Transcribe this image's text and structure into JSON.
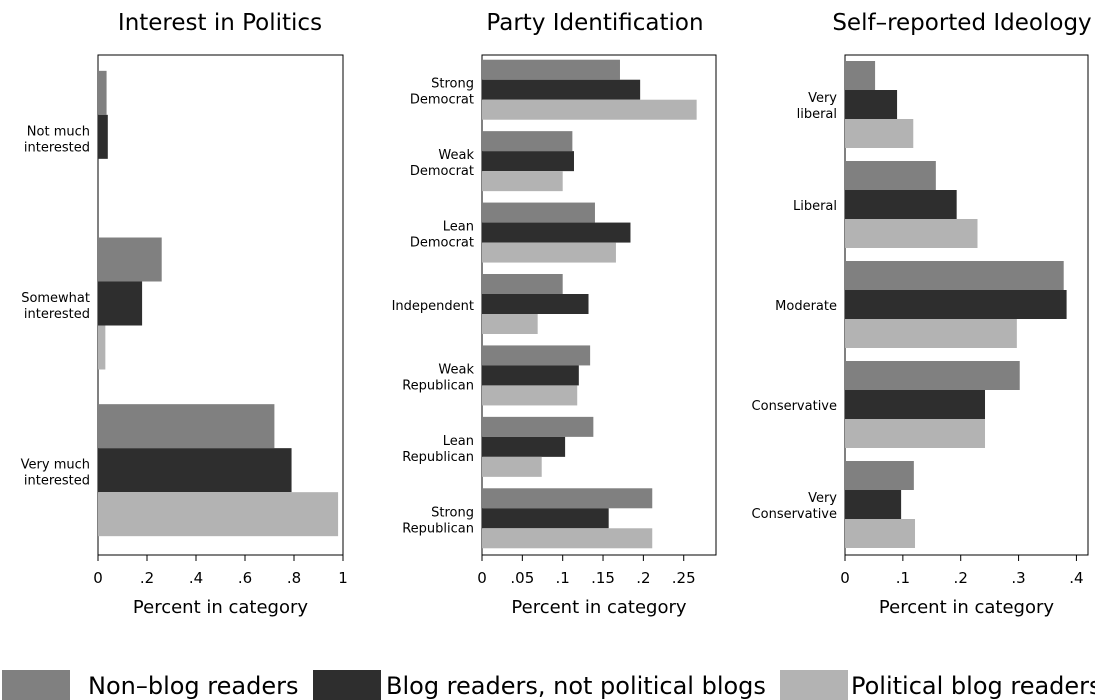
{
  "legend": [
    {
      "label": "Non–blog readers",
      "color": "#808080"
    },
    {
      "label": "Blog readers, not political blogs",
      "color": "#2e2e2e"
    },
    {
      "label": "Political blog readers",
      "color": "#b3b3b3"
    }
  ],
  "chart_data": [
    {
      "type": "bar",
      "orientation": "horizontal",
      "title": "Interest in Politics",
      "xlabel": "Percent in category",
      "xlim": [
        0,
        1
      ],
      "xticks": [
        "0",
        ".2",
        ".4",
        ".6",
        ".8",
        "1"
      ],
      "tick_values": [
        0,
        0.2,
        0.4,
        0.6,
        0.8,
        1
      ],
      "categories": [
        [
          "Not much",
          "interested"
        ],
        [
          "Somewhat",
          "interested"
        ],
        [
          "Very much",
          "interested"
        ]
      ],
      "series": [
        {
          "name": "Non–blog readers",
          "values": [
            0.035,
            0.26,
            0.72
          ]
        },
        {
          "name": "Blog readers, not political blogs",
          "values": [
            0.04,
            0.18,
            0.79
          ]
        },
        {
          "name": "Political blog readers",
          "values": [
            0.0,
            0.03,
            0.98
          ]
        }
      ]
    },
    {
      "type": "bar",
      "orientation": "horizontal",
      "title": "Party Identification",
      "xlabel": "Percent in category",
      "xlim": [
        0,
        0.29
      ],
      "xticks": [
        "0",
        ".05",
        ".1",
        ".15",
        ".2",
        ".25"
      ],
      "tick_values": [
        0,
        0.05,
        0.1,
        0.15,
        0.2,
        0.25
      ],
      "categories": [
        [
          "Strong",
          "Democrat"
        ],
        [
          "Weak",
          "Democrat"
        ],
        [
          "Lean",
          "Democrat"
        ],
        [
          "Independent"
        ],
        [
          "Weak",
          "Republican"
        ],
        [
          "Lean",
          "Republican"
        ],
        [
          "Strong",
          "Republican"
        ]
      ],
      "series": [
        {
          "name": "Non–blog readers",
          "values": [
            0.171,
            0.112,
            0.14,
            0.1,
            0.134,
            0.138,
            0.211
          ]
        },
        {
          "name": "Blog readers, not political blogs",
          "values": [
            0.196,
            0.114,
            0.184,
            0.132,
            0.12,
            0.103,
            0.157
          ]
        },
        {
          "name": "Political blog readers",
          "values": [
            0.266,
            0.1,
            0.166,
            0.069,
            0.118,
            0.074,
            0.211
          ]
        }
      ]
    },
    {
      "type": "bar",
      "orientation": "horizontal",
      "title": "Self–reported Ideology",
      "xlabel": "Percent in category",
      "xlim": [
        0,
        0.42
      ],
      "xticks": [
        "0",
        ".1",
        ".2",
        ".3",
        ".4"
      ],
      "tick_values": [
        0,
        0.1,
        0.2,
        0.3,
        0.4
      ],
      "categories": [
        [
          "Very",
          "liberal"
        ],
        [
          "Liberal"
        ],
        [
          "Moderate"
        ],
        [
          "Conservative"
        ],
        [
          "Very",
          "Conservative"
        ]
      ],
      "series": [
        {
          "name": "Non–blog readers",
          "values": [
            0.052,
            0.157,
            0.378,
            0.302,
            0.119
          ]
        },
        {
          "name": "Blog readers, not political blogs",
          "values": [
            0.09,
            0.193,
            0.383,
            0.242,
            0.097
          ]
        },
        {
          "name": "Political blog readers",
          "values": [
            0.118,
            0.229,
            0.297,
            0.242,
            0.121
          ]
        }
      ]
    }
  ]
}
